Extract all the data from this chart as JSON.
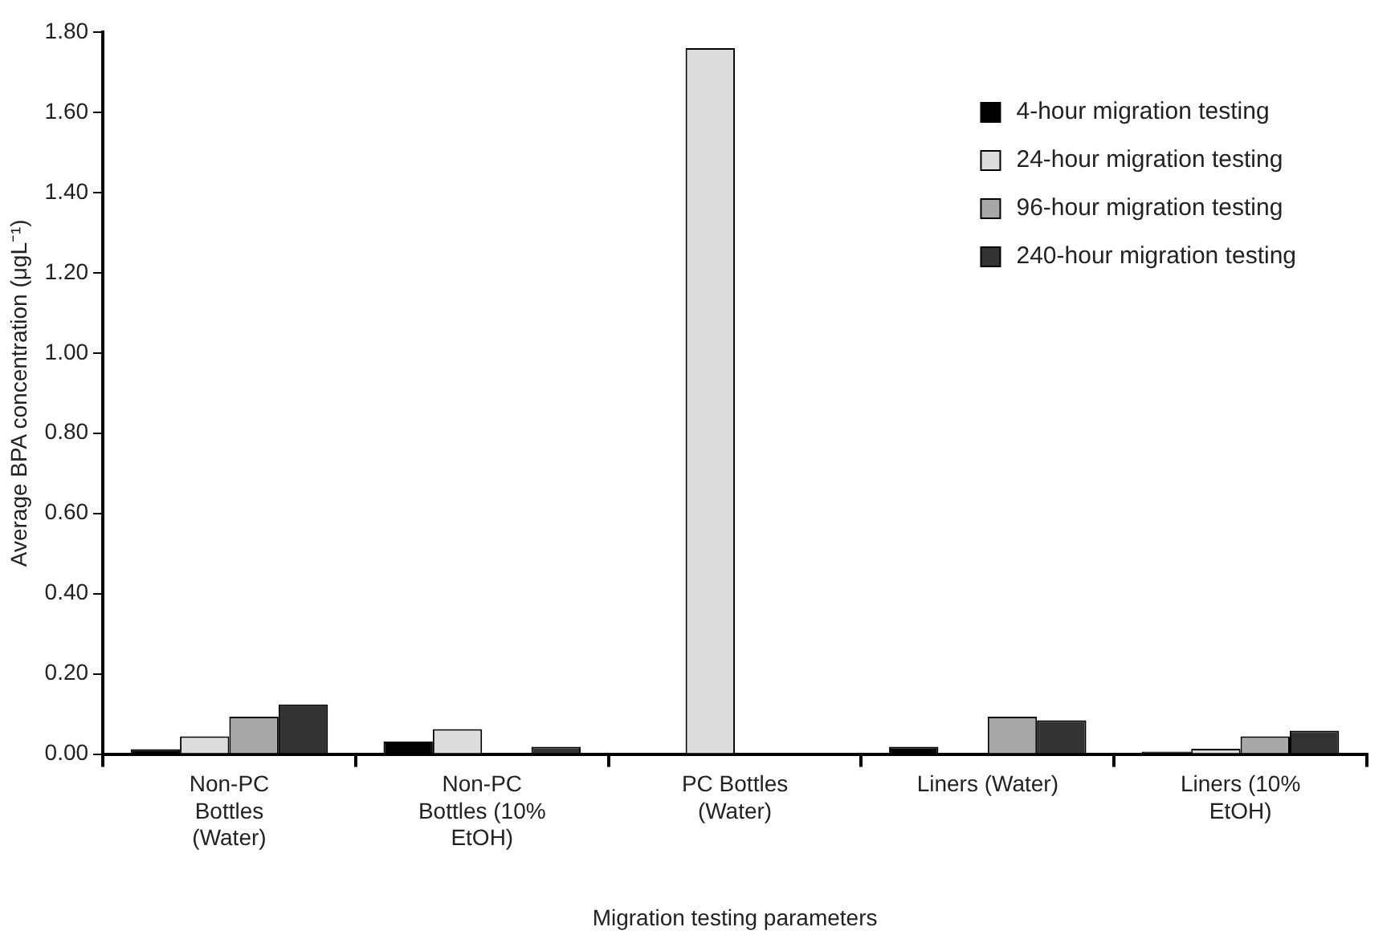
{
  "chart_data": {
    "type": "bar",
    "xlabel": "Migration testing parameters",
    "ylabel": "Average BPA concentration (μgL⁻¹)",
    "categories": [
      "Non-PC\nBottles\n(Water)",
      "Non-PC\nBottles (10%\nEtOH)",
      "PC Bottles\n(Water)",
      "Liners (Water)",
      "Liners (10%\nEtOH)"
    ],
    "series": [
      {
        "name": "4-hour migration testing",
        "color": "#000000",
        "values": [
          0.012,
          0.031,
          0,
          0.018,
          0.006
        ]
      },
      {
        "name": "24-hour migration testing",
        "color": "#dcdcdc",
        "values": [
          0.044,
          0.062,
          1.76,
          0,
          0.013
        ]
      },
      {
        "name": "96-hour migration testing",
        "color": "#a8a8a8",
        "values": [
          0.093,
          0,
          0,
          0.093,
          0.044
        ]
      },
      {
        "name": "240-hour migration testing",
        "color": "#333333",
        "values": [
          0.124,
          0.018,
          0,
          0.084,
          0.058
        ]
      }
    ],
    "ylim": [
      0,
      1.8
    ],
    "yticks": [
      {
        "value": 0,
        "label": "0.00"
      },
      {
        "value": 0.2,
        "label": "0.20"
      },
      {
        "value": 0.4,
        "label": "0.40"
      },
      {
        "value": 0.6,
        "label": "0.60"
      },
      {
        "value": 0.8,
        "label": "0.80"
      },
      {
        "value": 1,
        "label": "1.00"
      },
      {
        "value": 1.2,
        "label": "1.20"
      },
      {
        "value": 1.4,
        "label": "1.40"
      },
      {
        "value": 1.6,
        "label": "1.60"
      },
      {
        "value": 1.8,
        "label": "1.80"
      }
    ],
    "grid": false,
    "legend": "top right"
  }
}
